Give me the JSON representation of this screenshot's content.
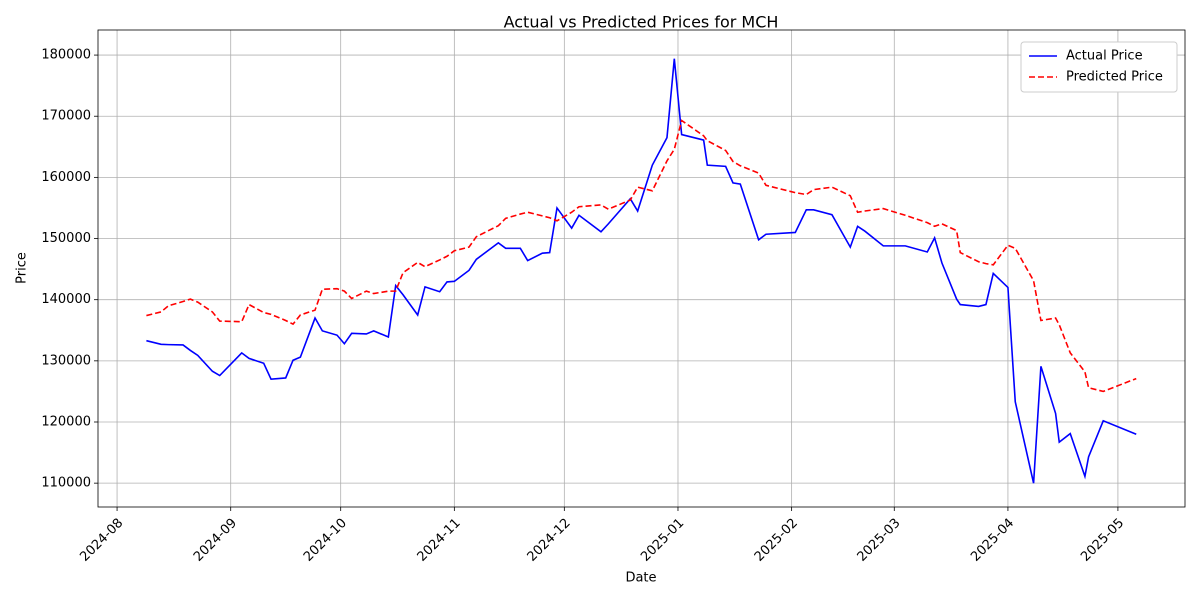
{
  "chart_data": {
    "type": "line",
    "title": "Actual vs Predicted Prices for MCH",
    "x_label": "Date",
    "y_label": "Price",
    "x": [
      8,
      12,
      14,
      18,
      20,
      22,
      26,
      28,
      34,
      36,
      40,
      42,
      46,
      48,
      50,
      54,
      56,
      60,
      62,
      64,
      68,
      70,
      74,
      76,
      78,
      82,
      84,
      88,
      90,
      92,
      96,
      98,
      104,
      106,
      110,
      112,
      116,
      118,
      120,
      124,
      126,
      132,
      134,
      140,
      142,
      146,
      150,
      152,
      154,
      160,
      161,
      166,
      168,
      170,
      175,
      177,
      185,
      188,
      190,
      195,
      200,
      202,
      204,
      209,
      215,
      221,
      223,
      225,
      229,
      230,
      235,
      237,
      239,
      243,
      245,
      250,
      252,
      256,
      257,
      260,
      264,
      265,
      269,
      278
    ],
    "series": [
      {
        "name": "Actual Price",
        "color": "#0000ff",
        "linestyle": "solid",
        "values": [
          133300,
          132700,
          132650,
          132600,
          131700,
          130900,
          128300,
          127600,
          131300,
          130400,
          129600,
          127000,
          127200,
          130100,
          130600,
          137000,
          134900,
          134200,
          132800,
          134500,
          134400,
          134900,
          133900,
          142300,
          140800,
          137500,
          142100,
          141300,
          142900,
          143000,
          144800,
          146600,
          149300,
          148400,
          148400,
          146400,
          147600,
          147700,
          155000,
          151700,
          153800,
          151100,
          152400,
          156500,
          154500,
          162000,
          166500,
          179400,
          167000,
          166100,
          162000,
          161800,
          159100,
          158900,
          149800,
          150700,
          151000,
          154700,
          154700,
          153900,
          148600,
          152000,
          151200,
          148800,
          148800,
          147800,
          150100,
          146000,
          140100,
          139200,
          138900,
          139200,
          144300,
          142000,
          123300,
          110000,
          129100,
          121400,
          116700,
          118100,
          111100,
          114300,
          120200,
          118000
        ]
      },
      {
        "name": "Predicted Price",
        "color": "#ff0000",
        "linestyle": "dashed",
        "values": [
          137400,
          138000,
          139000,
          139700,
          140100,
          139600,
          138000,
          136500,
          136400,
          139200,
          137900,
          137600,
          136600,
          136000,
          137500,
          138300,
          141700,
          141800,
          141400,
          140200,
          141400,
          141000,
          141400,
          141400,
          144400,
          146100,
          145400,
          146500,
          147100,
          148000,
          148600,
          150300,
          152100,
          153300,
          154000,
          154300,
          153700,
          153400,
          152900,
          154300,
          155200,
          155500,
          154800,
          156300,
          158400,
          157800,
          162700,
          164600,
          169300,
          166800,
          166000,
          164400,
          162600,
          161900,
          160700,
          158700,
          157500,
          157200,
          158000,
          158400,
          157000,
          154300,
          154500,
          154900,
          153800,
          152600,
          152000,
          152400,
          151300,
          147700,
          146200,
          145900,
          145700,
          148900,
          148400,
          143100,
          136600,
          137000,
          135900,
          131300,
          128200,
          125600,
          125000,
          127100
        ]
      }
    ],
    "xlim": [
      -5.2,
      291.3
    ],
    "xticks": [
      {
        "value": 0,
        "label": "2024-08"
      },
      {
        "value": 31,
        "label": "2024-09"
      },
      {
        "value": 61,
        "label": "2024-10"
      },
      {
        "value": 92,
        "label": "2024-11"
      },
      {
        "value": 122,
        "label": "2024-12"
      },
      {
        "value": 153,
        "label": "2025-01"
      },
      {
        "value": 184,
        "label": "2025-02"
      },
      {
        "value": 212,
        "label": "2025-03"
      },
      {
        "value": 243,
        "label": "2025-04"
      },
      {
        "value": 273,
        "label": "2025-05"
      }
    ],
    "ylim": [
      106100,
      184100
    ],
    "yticks": [
      110000,
      120000,
      130000,
      140000,
      150000,
      160000,
      170000,
      180000
    ],
    "grid": true,
    "legend": "upper right"
  }
}
